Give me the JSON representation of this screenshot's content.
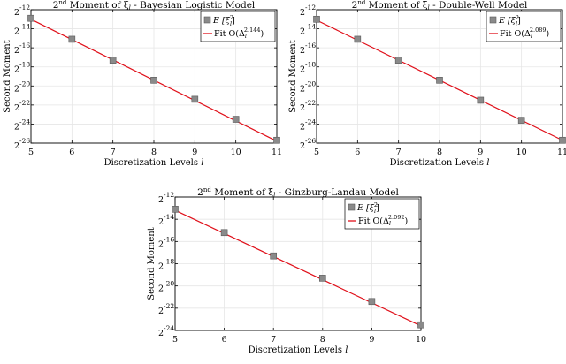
{
  "colors": {
    "fit": "#e0101a",
    "marker": "#8a8a8a",
    "marker_edge": "#5a5a5a",
    "grid": "#e6e6e6",
    "axis": "#000000"
  },
  "chart_data": [
    {
      "type": "line",
      "title_prefix": "2",
      "title_sup": "nd",
      "title_rest": " Moment of ξ",
      "title_sub": "l",
      "title_suffix": " - Bayesian Logistic Model",
      "xlabel": "Discretization Levels",
      "xlabel_var": "l",
      "ylabel": "Second Moment",
      "xlim": [
        5,
        11
      ],
      "ylim_log2": [
        -26,
        -12
      ],
      "xticks": [
        5,
        6,
        7,
        8,
        9,
        10,
        11
      ],
      "yticks_exp": [
        -26,
        -24,
        -22,
        -20,
        -18,
        -16,
        -14,
        -12
      ],
      "tick_base": "2",
      "grid": true,
      "legend_position": "top-right",
      "legend": {
        "marker_label": "E [ξ",
        "marker_label_sup": "2",
        "marker_label_sub": "l",
        "marker_label_end": "]",
        "fit_label": "Fit O(Δ",
        "fit_label_sub": "l",
        "fit_label_sup": "2.144",
        "fit_label_end": ")"
      },
      "x": [
        5,
        6,
        7,
        8,
        9,
        10,
        11
      ],
      "y_log2": [
        -12.9,
        -15.1,
        -17.3,
        -19.4,
        -21.4,
        -23.5,
        -25.7
      ],
      "fit_log2": [
        [
          5,
          -13.0
        ],
        [
          11,
          -25.8
        ]
      ]
    },
    {
      "type": "line",
      "title_prefix": "2",
      "title_sup": "nd",
      "title_rest": " Moment of ξ",
      "title_sub": "l",
      "title_suffix": " - Double-Well Model",
      "xlabel": "Discretization Levels",
      "xlabel_var": "l",
      "ylabel": "Second Moment",
      "xlim": [
        5,
        11
      ],
      "ylim_log2": [
        -26,
        -12
      ],
      "xticks": [
        5,
        6,
        7,
        8,
        9,
        10,
        11
      ],
      "yticks_exp": [
        -26,
        -24,
        -22,
        -20,
        -18,
        -16,
        -14,
        -12
      ],
      "tick_base": "2",
      "grid": true,
      "legend_position": "top-right",
      "legend": {
        "marker_label": "E [ξ",
        "marker_label_sup": "2",
        "marker_label_sub": "l",
        "marker_label_end": "]",
        "fit_label": "Fit O(Δ",
        "fit_label_sub": "l",
        "fit_label_sup": "2.089",
        "fit_label_end": ")"
      },
      "x": [
        5,
        6,
        7,
        8,
        9,
        10,
        11
      ],
      "y_log2": [
        -13.0,
        -15.1,
        -17.3,
        -19.4,
        -21.5,
        -23.6,
        -25.7
      ],
      "fit_log2": [
        [
          5,
          -13.1
        ],
        [
          11,
          -25.7
        ]
      ]
    },
    {
      "type": "line",
      "title_prefix": "2",
      "title_sup": "nd",
      "title_rest": " Moment of ξ",
      "title_sub": "l",
      "title_suffix": " - Ginzburg-Landau Model",
      "xlabel": "Discretization Levels",
      "xlabel_var": "l",
      "ylabel": "Second Moment",
      "xlim": [
        5,
        10
      ],
      "ylim_log2": [
        -24,
        -12
      ],
      "xticks": [
        5,
        6,
        7,
        8,
        9,
        10
      ],
      "yticks_exp": [
        -24,
        -22,
        -20,
        -18,
        -16,
        -14,
        -12
      ],
      "tick_base": "2",
      "grid": true,
      "legend_position": "top-right",
      "legend": {
        "marker_label": "E [ξ",
        "marker_label_sup": "2",
        "marker_label_sub": "l",
        "marker_label_end": "]",
        "fit_label": "Fit O(Δ",
        "fit_label_sub": "l",
        "fit_label_sup": "2.092",
        "fit_label_end": ")"
      },
      "x": [
        5,
        6,
        7,
        8,
        9,
        10
      ],
      "y_log2": [
        -13.1,
        -15.2,
        -17.3,
        -19.3,
        -21.4,
        -23.5
      ],
      "fit_log2": [
        [
          5,
          -13.2
        ],
        [
          10,
          -23.6
        ]
      ]
    }
  ]
}
